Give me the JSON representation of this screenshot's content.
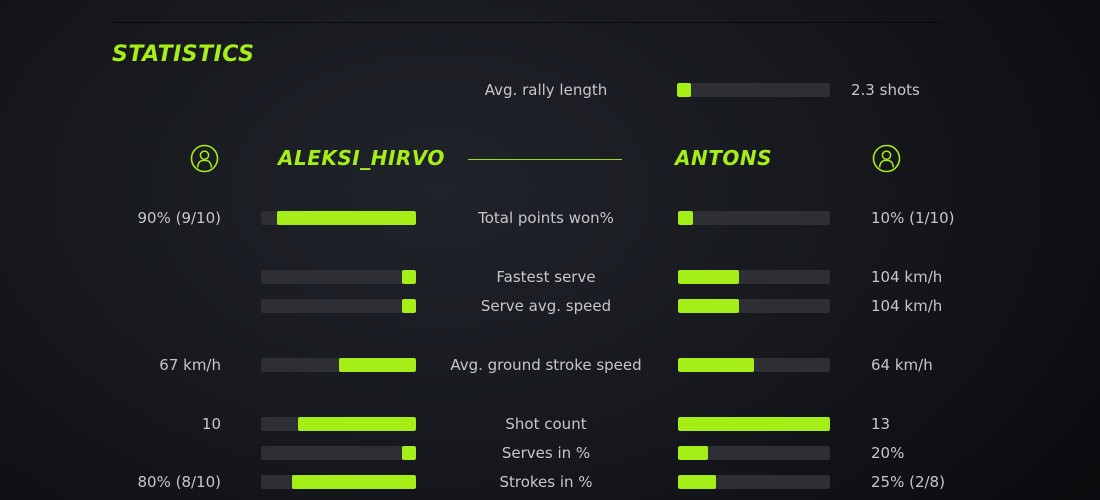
{
  "title": "STATISTICS",
  "colors": {
    "accent": "#a6ee17",
    "bar_background": "#2e2f34",
    "text": "#c6c7ca",
    "background_center": "#20232a",
    "background_edge": "#070809"
  },
  "summary_row": {
    "label": "Avg. rally length",
    "value": "2.3 shots",
    "fill_pct": 9
  },
  "players": {
    "left": {
      "name": "ALEKSI_HIRVO"
    },
    "right": {
      "name": "ANTONS"
    }
  },
  "rows": [
    {
      "label": "Total points won%",
      "left_value": "90% (9/10)",
      "left_fill_pct": 90,
      "right_value": "10% (1/10)",
      "right_fill_pct": 10
    },
    {
      "label": "Fastest serve",
      "left_value": "",
      "left_fill_pct": 9,
      "right_value": "104 km/h",
      "right_fill_pct": 40
    },
    {
      "label": "Serve avg. speed",
      "left_value": "",
      "left_fill_pct": 9,
      "right_value": "104 km/h",
      "right_fill_pct": 40
    },
    {
      "label": "Avg. ground stroke speed",
      "left_value": "67 km/h",
      "left_fill_pct": 50,
      "right_value": "64 km/h",
      "right_fill_pct": 50
    },
    {
      "label": "Shot count",
      "left_value": "10",
      "left_fill_pct": 76,
      "right_value": "13",
      "right_fill_pct": 100
    },
    {
      "label": "Serves in %",
      "left_value": "",
      "left_fill_pct": 9,
      "right_value": "20%",
      "right_fill_pct": 20
    },
    {
      "label": "Strokes in %",
      "left_value": "80% (8/10)",
      "left_fill_pct": 80,
      "right_value": "25% (2/8)",
      "right_fill_pct": 25
    }
  ]
}
